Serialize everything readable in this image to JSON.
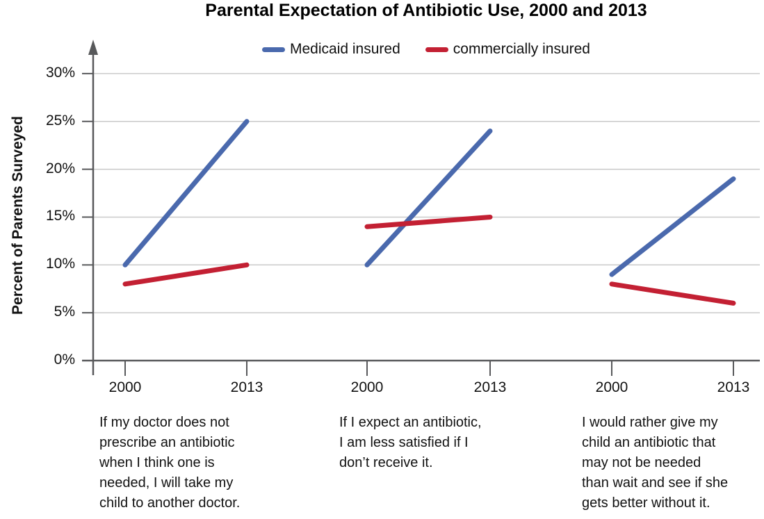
{
  "chart_data": {
    "type": "line",
    "title": "Parental Expectation of Antibiotic Use, 2000 and 2013",
    "ylabel": "Percent of Parents Surveyed",
    "ylim": [
      0,
      30
    ],
    "yticks": [
      0,
      5,
      10,
      15,
      20,
      25,
      30
    ],
    "ytick_labels": [
      "0%",
      "5%",
      "10%",
      "15%",
      "20%",
      "25%",
      "30%"
    ],
    "grid": true,
    "legend_position": "top-center",
    "legend": [
      {
        "label": "Medicaid insured",
        "color": "#4a69ad"
      },
      {
        "label": "commercially insured",
        "color": "#c32033"
      }
    ],
    "x_categories": [
      "2000",
      "2013"
    ],
    "panels": [
      {
        "caption": "If my doctor does not\nprescribe an antibiotic\nwhen I think one is\nneeded, I will take my\nchild to another doctor.",
        "x_labels": [
          "2000",
          "2013"
        ],
        "series": [
          {
            "name": "Medicaid insured",
            "color": "#4a69ad",
            "values": [
              10,
              25
            ]
          },
          {
            "name": "commercially insured",
            "color": "#c32033",
            "values": [
              8,
              10
            ]
          }
        ]
      },
      {
        "caption": "If I expect an antibiotic,\nI am less satisfied if I\ndon’t receive it.",
        "x_labels": [
          "2000",
          "2013"
        ],
        "series": [
          {
            "name": "Medicaid insured",
            "color": "#4a69ad",
            "values": [
              10,
              24
            ]
          },
          {
            "name": "commercially insured",
            "color": "#c32033",
            "values": [
              14,
              15
            ]
          }
        ]
      },
      {
        "caption": "I would rather give my\nchild an antibiotic that\nmay not be needed\nthan wait and see if she\ngets better without it.",
        "x_labels": [
          "2000",
          "2013"
        ],
        "series": [
          {
            "name": "Medicaid insured",
            "color": "#4a69ad",
            "values": [
              9,
              19
            ]
          },
          {
            "name": "commercially insured",
            "color": "#c32033",
            "values": [
              8,
              6
            ]
          }
        ]
      }
    ],
    "style": {
      "axis_color": "#58595b",
      "grid_color": "#c9c9c9",
      "text_color": "#111111"
    }
  }
}
